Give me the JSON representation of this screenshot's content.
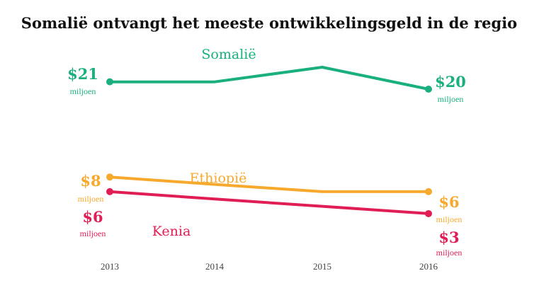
{
  "chart_data": {
    "type": "line",
    "title": "Somalië ontvangt het meeste ontwikkelingsgeld in de regio",
    "x": [
      "2013",
      "2014",
      "2015",
      "2016"
    ],
    "unit_label": "miljoen",
    "ylim": [
      0,
      24
    ],
    "grid": false,
    "legend": "inline",
    "series": [
      {
        "name": "Somalië",
        "color": "#1aaf7f",
        "values": [
          21,
          21,
          23,
          20
        ],
        "start_label": "$21",
        "end_label": "$20"
      },
      {
        "name": "Ethiopië",
        "color": "#f7a92d",
        "values": [
          8,
          7,
          6,
          6
        ],
        "start_label": "$8",
        "end_label": "$6"
      },
      {
        "name": "Kenia",
        "color": "#e01e55",
        "values": [
          6,
          5,
          4,
          3
        ],
        "start_label": "$6",
        "end_label": "$3"
      }
    ]
  }
}
